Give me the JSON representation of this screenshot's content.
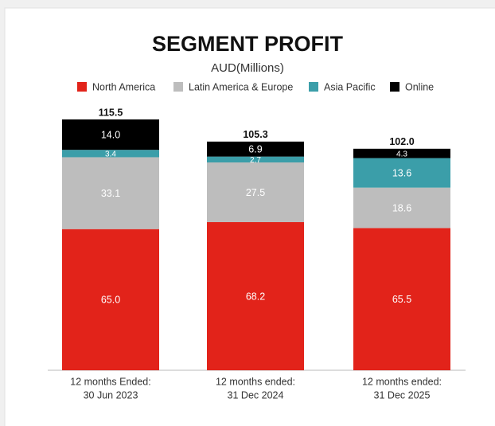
{
  "chart_data": {
    "type": "stacked-bar",
    "title": "SEGMENT PROFIT",
    "subtitle": "AUD(Millions)",
    "categories": [
      [
        "12 months Ended:",
        "30 Jun 2023"
      ],
      [
        "12 months ended:",
        "31 Dec 2024"
      ],
      [
        "12 months ended:",
        "31 Dec 2025"
      ]
    ],
    "series": [
      {
        "name": "North America",
        "color": "#e2231a",
        "values": [
          65.0,
          68.2,
          65.5
        ],
        "value_labels": [
          "65.0",
          "68.2",
          "65.5"
        ]
      },
      {
        "name": "Latin America & Europe",
        "color": "#bdbdbd",
        "values": [
          33.1,
          27.5,
          18.6
        ],
        "value_labels": [
          "33.1",
          "27.5",
          "18.6"
        ]
      },
      {
        "name": "Asia Pacific",
        "color": "#3b9ea9",
        "values": [
          3.4,
          2.7,
          13.6
        ],
        "value_labels": [
          "3.4",
          "2.7",
          "13.6"
        ]
      },
      {
        "name": "Online",
        "color": "#000000",
        "values": [
          14.0,
          6.9,
          4.3
        ],
        "value_labels": [
          "14.0",
          "6.9",
          "4.3"
        ]
      }
    ],
    "totals": [
      115.5,
      105.3,
      102.0
    ],
    "total_labels": [
      "115.5",
      "105.3",
      "102.0"
    ]
  }
}
